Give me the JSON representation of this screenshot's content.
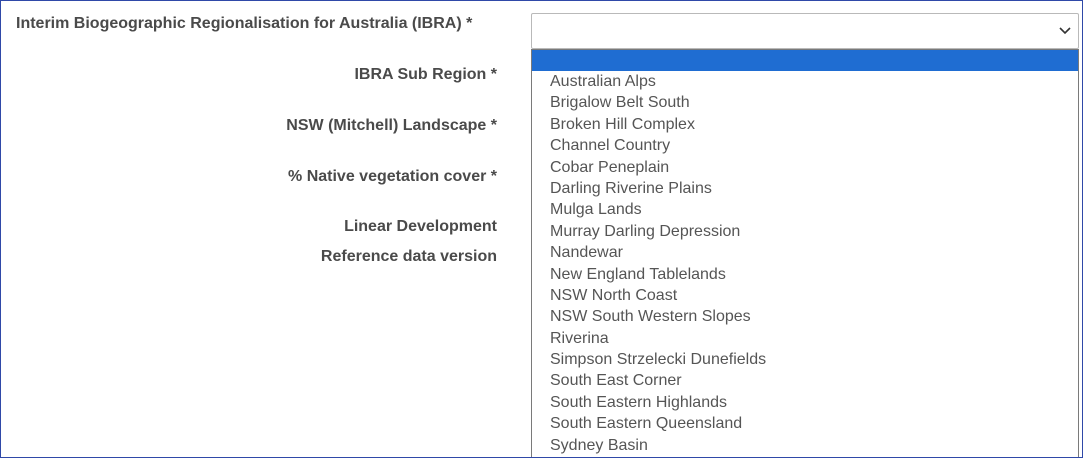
{
  "form": {
    "ibra_label": "Interim Biogeographic Regionalisation for Australia (IBRA) *",
    "ibra_sub_region_label": "IBRA Sub Region *",
    "mitchell_landscape_label": "NSW (Mitchell) Landscape *",
    "native_veg_label": "% Native vegetation cover *",
    "linear_dev_label": "Linear Development",
    "ref_data_label": "Reference data version"
  },
  "dropdown": {
    "selected_value": "",
    "icon": "chevron-down-icon",
    "highlight_color": "#1f6dd2",
    "options": [
      "Australian Alps",
      "Brigalow Belt South",
      "Broken Hill Complex",
      "Channel Country",
      "Cobar Peneplain",
      "Darling Riverine Plains",
      "Mulga Lands",
      "Murray Darling Depression",
      "Nandewar",
      "New England Tablelands",
      "NSW North Coast",
      "NSW South Western Slopes",
      "Riverina",
      "Simpson Strzelecki Dunefields",
      "South East Corner",
      "South Eastern Highlands",
      "South Eastern Queensland",
      "Sydney Basin"
    ]
  }
}
